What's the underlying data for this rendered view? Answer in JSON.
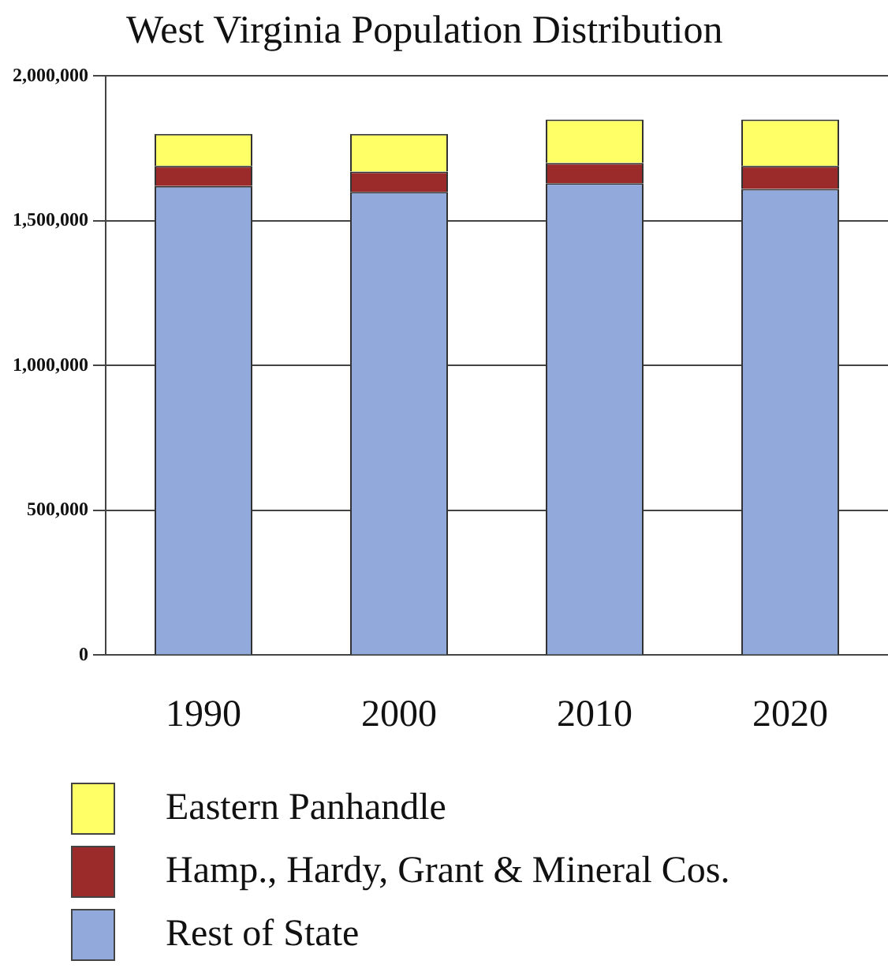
{
  "chart_data": {
    "type": "bar",
    "title": "West Virginia Population Distribution",
    "categories": [
      "1990",
      "2000",
      "2010",
      "2020"
    ],
    "stacked": true,
    "series": [
      {
        "name": "Rest of State",
        "color": "#92a9dc",
        "values": [
          1620000,
          1600000,
          1630000,
          1610000
        ]
      },
      {
        "name": "Hamp., Hardy, Grant & Mineral Cos.",
        "color": "#9b2a2a",
        "values": [
          70000,
          70000,
          70000,
          80000
        ]
      },
      {
        "name": "Eastern Panhandle",
        "color": "#ffff66",
        "values": [
          110000,
          130000,
          150000,
          160000
        ]
      }
    ],
    "ylim": [
      0,
      2000000
    ],
    "yticks": [
      {
        "value": 0,
        "label": "0"
      },
      {
        "value": 500000,
        "label": "500,000"
      },
      {
        "value": 1000000,
        "label": "1,000,000"
      },
      {
        "value": 1500000,
        "label": "1,500,000"
      },
      {
        "value": 2000000,
        "label": "2,000,000"
      }
    ],
    "grid": "y",
    "legend": "bottom"
  }
}
